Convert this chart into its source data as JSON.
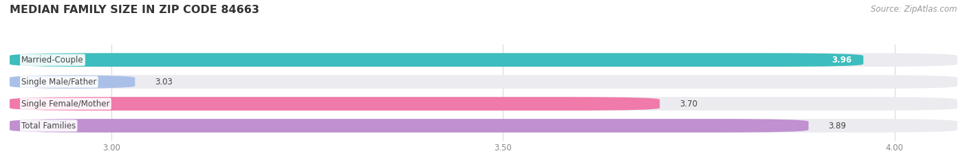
{
  "title": "MEDIAN FAMILY SIZE IN ZIP CODE 84663",
  "source": "Source: ZipAtlas.com",
  "categories": [
    "Married-Couple",
    "Single Male/Father",
    "Single Female/Mother",
    "Total Families"
  ],
  "values": [
    3.96,
    3.03,
    3.7,
    3.89
  ],
  "colors": [
    "#3dbdbd",
    "#aac0e8",
    "#f07aaa",
    "#c090d0"
  ],
  "bar_bg_color": "#ebebf0",
  "xlim_min": 2.87,
  "xlim_max": 4.08,
  "xtick_values": [
    3.0,
    3.5,
    4.0
  ],
  "xtick_labels": [
    "3.00",
    "3.50",
    "4.00"
  ],
  "bar_height": 0.62,
  "bar_gap": 0.38,
  "background_color": "#ffffff",
  "title_fontsize": 11.5,
  "label_fontsize": 8.5,
  "value_fontsize": 8.5,
  "tick_fontsize": 8.5,
  "source_fontsize": 8.5,
  "grid_color": "#d8d8d8",
  "text_color": "#444444",
  "tick_color": "#888888"
}
